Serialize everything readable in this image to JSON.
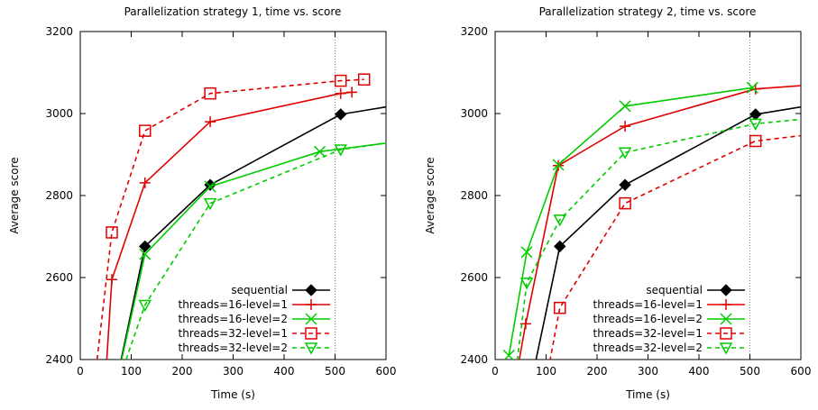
{
  "chart_data": [
    {
      "type": "line",
      "title": "Parallelization strategy 1, time vs. score",
      "xlabel": "Time (s)",
      "ylabel": "Average score",
      "xlim": [
        0,
        600
      ],
      "ylim": [
        2400,
        3200
      ],
      "xticks": [
        0,
        100,
        200,
        300,
        400,
        500,
        600
      ],
      "yticks": [
        2400,
        2600,
        2800,
        3000,
        3200
      ],
      "reference_line_x": 500,
      "legend_position": "bottom-right",
      "grid": false,
      "series": [
        {
          "name": "sequential",
          "color": "#000000",
          "dash": "solid",
          "marker": "diamond",
          "points": [
            [
              60,
              2280
            ],
            [
              127,
              2676
            ],
            [
              255,
              2826
            ],
            [
              511,
              2998
            ],
            [
              600,
              3016
            ]
          ],
          "marked": [
            [
              127,
              2676
            ],
            [
              255,
              2826
            ],
            [
              511,
              2998
            ]
          ]
        },
        {
          "name": "threads=16-level=1",
          "color": "#e00000",
          "dash": "solid",
          "marker": "plus",
          "points": [
            [
              52,
              2400
            ],
            [
              62,
              2595
            ],
            [
              127,
              2831
            ],
            [
              255,
              2980
            ],
            [
              511,
              3049
            ],
            [
              533,
              3052
            ]
          ],
          "marked": [
            [
              62,
              2595
            ],
            [
              127,
              2831
            ],
            [
              255,
              2980
            ],
            [
              511,
              3049
            ],
            [
              533,
              3052
            ]
          ]
        },
        {
          "name": "threads=16-level=2",
          "color": "#00cc00",
          "dash": "solid",
          "marker": "x",
          "points": [
            [
              60,
              2280
            ],
            [
              127,
              2657
            ],
            [
              255,
              2822
            ],
            [
              470,
              2907
            ],
            [
              600,
              2928
            ]
          ],
          "marked": [
            [
              127,
              2657
            ],
            [
              255,
              2822
            ],
            [
              470,
              2907
            ]
          ]
        },
        {
          "name": "threads=32-level=1",
          "color": "#e00000",
          "dash": "dashed",
          "marker": "square",
          "points": [
            [
              33,
              2400
            ],
            [
              62,
              2710
            ],
            [
              127,
              2958
            ],
            [
              255,
              3049
            ],
            [
              511,
              3080
            ],
            [
              557,
              3083
            ]
          ],
          "marked": [
            [
              62,
              2710
            ],
            [
              127,
              2958
            ],
            [
              255,
              3049
            ],
            [
              511,
              3080
            ],
            [
              557,
              3083
            ]
          ]
        },
        {
          "name": "threads=32-level=2",
          "color": "#00cc00",
          "dash": "dashed",
          "marker": "triangle-down",
          "points": [
            [
              90,
              2400
            ],
            [
              127,
              2533
            ],
            [
              255,
              2781
            ],
            [
              511,
              2912
            ],
            [
              600,
              2928
            ]
          ],
          "marked": [
            [
              127,
              2533
            ],
            [
              255,
              2781
            ],
            [
              511,
              2912
            ]
          ]
        }
      ]
    },
    {
      "type": "line",
      "title": "Parallelization strategy 2, time vs. score",
      "xlabel": "Time (s)",
      "ylabel": "Average score",
      "xlim": [
        0,
        600
      ],
      "ylim": [
        2400,
        3200
      ],
      "xticks": [
        0,
        100,
        200,
        300,
        400,
        500,
        600
      ],
      "yticks": [
        2400,
        2600,
        2800,
        3000,
        3200
      ],
      "reference_line_x": 500,
      "legend_position": "bottom-right",
      "grid": false,
      "series": [
        {
          "name": "sequential",
          "color": "#000000",
          "dash": "solid",
          "marker": "diamond",
          "points": [
            [
              60,
              2280
            ],
            [
              127,
              2676
            ],
            [
              255,
              2826
            ],
            [
              511,
              2998
            ],
            [
              600,
              3016
            ]
          ],
          "marked": [
            [
              127,
              2676
            ],
            [
              255,
              2826
            ],
            [
              511,
              2998
            ]
          ]
        },
        {
          "name": "threads=16-level=1",
          "color": "#e00000",
          "dash": "solid",
          "marker": "plus",
          "points": [
            [
              30,
              2280
            ],
            [
              60,
              2487
            ],
            [
              124,
              2873
            ],
            [
              255,
              2969
            ],
            [
              511,
              3060
            ],
            [
              600,
              3068
            ]
          ],
          "marked": [
            [
              60,
              2487
            ],
            [
              124,
              2873
            ],
            [
              255,
              2969
            ],
            [
              511,
              3060
            ]
          ]
        },
        {
          "name": "threads=16-level=2",
          "color": "#00cc00",
          "dash": "solid",
          "marker": "x",
          "points": [
            [
              27,
              2410
            ],
            [
              62,
              2662
            ],
            [
              124,
              2875
            ],
            [
              255,
              3018
            ],
            [
              505,
              3063
            ]
          ],
          "marked": [
            [
              27,
              2410
            ],
            [
              62,
              2662
            ],
            [
              124,
              2875
            ],
            [
              255,
              3018
            ],
            [
              505,
              3063
            ]
          ]
        },
        {
          "name": "threads=32-level=1",
          "color": "#e00000",
          "dash": "dashed",
          "marker": "square",
          "points": [
            [
              90,
              2280
            ],
            [
              127,
              2526
            ],
            [
              255,
              2781
            ],
            [
              511,
              2933
            ],
            [
              600,
              2946
            ]
          ],
          "marked": [
            [
              127,
              2526
            ],
            [
              255,
              2781
            ],
            [
              511,
              2933
            ]
          ]
        },
        {
          "name": "threads=32-level=2",
          "color": "#00cc00",
          "dash": "dashed",
          "marker": "triangle-down",
          "points": [
            [
              32,
              2280
            ],
            [
              62,
              2587
            ],
            [
              127,
              2741
            ],
            [
              255,
              2905
            ],
            [
              511,
              2975
            ],
            [
              600,
              2986
            ]
          ],
          "marked": [
            [
              62,
              2587
            ],
            [
              127,
              2741
            ],
            [
              255,
              2905
            ],
            [
              511,
              2975
            ]
          ]
        }
      ]
    }
  ]
}
